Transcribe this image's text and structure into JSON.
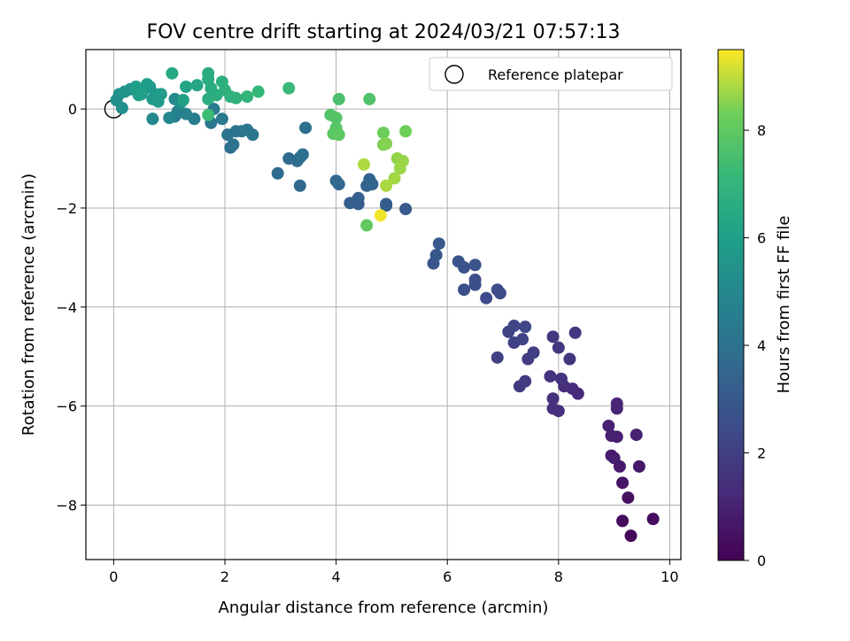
{
  "chart_data": {
    "type": "scatter",
    "title": "FOV centre drift starting at 2024/03/21 07:57:13",
    "xlabel": "Angular distance from reference (arcmin)",
    "ylabel": "Rotation from reference (arcmin)",
    "colorbar_label": "Hours from first FF file",
    "xlim": [
      -0.5,
      10.2
    ],
    "ylim": [
      -9.1,
      1.2
    ],
    "x_ticks": [
      "0",
      "2",
      "4",
      "6",
      "8",
      "10"
    ],
    "y_ticks": [
      "0",
      "−2",
      "−4",
      "−6",
      "−8"
    ],
    "colorbar_range": [
      0,
      9.5
    ],
    "colorbar_ticks": [
      "0",
      "2",
      "4",
      "6",
      "8"
    ],
    "colormap": "viridis",
    "grid": true,
    "legend": {
      "placement": "top-right",
      "entries": [
        "Reference platepar"
      ]
    },
    "reference_point": {
      "x": 0,
      "y": 0
    },
    "points": [
      [
        9.3,
        -8.62,
        0.2
      ],
      [
        9.15,
        -8.32,
        0.3
      ],
      [
        9.7,
        -8.28,
        0.35
      ],
      [
        9.25,
        -7.85,
        0.5
      ],
      [
        9.15,
        -7.55,
        0.6
      ],
      [
        9.45,
        -7.22,
        0.7
      ],
      [
        9.1,
        -7.22,
        0.75
      ],
      [
        8.95,
        -7.0,
        0.8
      ],
      [
        9.0,
        -7.05,
        0.85
      ],
      [
        9.05,
        -6.62,
        0.9
      ],
      [
        8.95,
        -6.6,
        0.95
      ],
      [
        9.4,
        -6.58,
        1.0
      ],
      [
        8.9,
        -6.4,
        1.05
      ],
      [
        9.05,
        -6.05,
        1.1
      ],
      [
        9.05,
        -5.95,
        1.15
      ],
      [
        8.35,
        -5.75,
        1.25
      ],
      [
        8.25,
        -5.65,
        1.3
      ],
      [
        8.1,
        -5.6,
        1.35
      ],
      [
        8.0,
        -6.1,
        1.4
      ],
      [
        7.9,
        -6.05,
        1.45
      ],
      [
        7.9,
        -5.85,
        1.5
      ],
      [
        8.05,
        -5.45,
        1.55
      ],
      [
        7.85,
        -5.4,
        1.6
      ],
      [
        8.2,
        -5.05,
        1.65
      ],
      [
        8.0,
        -4.82,
        1.7
      ],
      [
        7.9,
        -4.6,
        1.75
      ],
      [
        8.3,
        -4.52,
        1.8
      ],
      [
        7.3,
        -5.6,
        1.85
      ],
      [
        7.4,
        -5.5,
        1.9
      ],
      [
        7.45,
        -5.05,
        1.95
      ],
      [
        7.55,
        -4.92,
        2.0
      ],
      [
        6.9,
        -5.02,
        2.05
      ],
      [
        7.2,
        -4.72,
        2.1
      ],
      [
        7.35,
        -4.65,
        2.15
      ],
      [
        7.1,
        -4.5,
        2.2
      ],
      [
        7.2,
        -4.38,
        2.25
      ],
      [
        7.4,
        -4.4,
        2.3
      ],
      [
        6.7,
        -3.82,
        2.4
      ],
      [
        6.95,
        -3.72,
        2.45
      ],
      [
        6.9,
        -3.65,
        2.5
      ],
      [
        6.5,
        -3.55,
        2.55
      ],
      [
        6.5,
        -3.45,
        2.6
      ],
      [
        6.3,
        -3.65,
        2.65
      ],
      [
        6.3,
        -3.2,
        2.7
      ],
      [
        6.5,
        -3.15,
        2.75
      ],
      [
        6.2,
        -3.08,
        2.8
      ],
      [
        5.75,
        -3.12,
        2.85
      ],
      [
        5.8,
        -2.95,
        2.9
      ],
      [
        5.85,
        -2.72,
        2.95
      ],
      [
        5.25,
        -2.02,
        3.0
      ],
      [
        4.9,
        -1.95,
        3.05
      ],
      [
        4.9,
        -1.92,
        3.1
      ],
      [
        4.4,
        -1.92,
        3.15
      ],
      [
        4.25,
        -1.9,
        3.2
      ],
      [
        4.4,
        -1.8,
        3.25
      ],
      [
        4.55,
        -1.55,
        3.3
      ],
      [
        4.6,
        -1.48,
        3.35
      ],
      [
        4.65,
        -1.52,
        3.4
      ],
      [
        4.6,
        -1.42,
        3.45
      ],
      [
        4.05,
        -1.52,
        3.5
      ],
      [
        4.0,
        -1.45,
        3.55
      ],
      [
        3.35,
        -1.55,
        3.6
      ],
      [
        2.95,
        -1.3,
        3.65
      ],
      [
        3.15,
        -1.0,
        3.7
      ],
      [
        3.35,
        -0.98,
        3.75
      ],
      [
        3.3,
        -1.05,
        3.8
      ],
      [
        3.4,
        -0.92,
        3.85
      ],
      [
        3.45,
        -0.38,
        3.9
      ],
      [
        2.1,
        -0.78,
        3.95
      ],
      [
        2.15,
        -0.72,
        4.0
      ],
      [
        2.05,
        -0.52,
        4.05
      ],
      [
        2.2,
        -0.45,
        4.1
      ],
      [
        2.3,
        -0.45,
        4.15
      ],
      [
        2.4,
        -0.42,
        4.2
      ],
      [
        2.5,
        -0.52,
        4.25
      ],
      [
        1.75,
        -0.28,
        4.3
      ],
      [
        1.95,
        -0.2,
        4.35
      ],
      [
        1.8,
        0.0,
        4.4
      ],
      [
        1.45,
        -0.2,
        4.5
      ],
      [
        1.1,
        -0.15,
        4.6
      ],
      [
        1.15,
        -0.05,
        4.7
      ],
      [
        1.3,
        -0.1,
        4.8
      ],
      [
        1.0,
        -0.18,
        4.9
      ],
      [
        0.7,
        -0.2,
        5.0
      ],
      [
        1.1,
        0.2,
        5.1
      ],
      [
        1.2,
        0.12,
        5.2
      ],
      [
        0.15,
        0.02,
        5.3
      ],
      [
        0.05,
        0.18,
        5.35
      ],
      [
        0.1,
        0.3,
        5.4
      ],
      [
        0.2,
        0.35,
        5.45
      ],
      [
        0.3,
        0.4,
        5.5
      ],
      [
        0.5,
        0.3,
        5.55
      ],
      [
        0.55,
        0.4,
        5.6
      ],
      [
        0.65,
        0.45,
        5.65
      ],
      [
        0.75,
        0.3,
        5.7
      ],
      [
        0.7,
        0.2,
        5.75
      ],
      [
        0.8,
        0.15,
        5.8
      ],
      [
        0.85,
        0.3,
        5.85
      ],
      [
        0.6,
        0.5,
        5.9
      ],
      [
        0.4,
        0.45,
        5.95
      ],
      [
        0.45,
        0.28,
        6.0
      ],
      [
        0.5,
        0.32,
        6.05
      ],
      [
        1.25,
        0.18,
        6.1
      ],
      [
        1.3,
        0.45,
        6.2
      ],
      [
        1.5,
        0.48,
        6.3
      ],
      [
        1.05,
        0.72,
        6.4
      ],
      [
        1.7,
        0.72,
        6.5
      ],
      [
        1.7,
        0.6,
        6.55
      ],
      [
        1.75,
        0.42,
        6.6
      ],
      [
        1.7,
        0.2,
        6.65
      ],
      [
        1.85,
        0.28,
        6.7
      ],
      [
        1.95,
        0.55,
        6.75
      ],
      [
        2.0,
        0.38,
        6.8
      ],
      [
        2.1,
        0.25,
        6.85
      ],
      [
        2.2,
        0.22,
        6.9
      ],
      [
        2.4,
        0.25,
        7.0
      ],
      [
        2.6,
        0.35,
        7.1
      ],
      [
        3.15,
        0.42,
        7.2
      ],
      [
        1.7,
        -0.12,
        7.3
      ],
      [
        4.05,
        0.2,
        7.6
      ],
      [
        4.6,
        0.2,
        7.7
      ],
      [
        3.9,
        -0.12,
        7.75
      ],
      [
        4.0,
        -0.18,
        7.8
      ],
      [
        4.0,
        -0.38,
        7.85
      ],
      [
        3.95,
        -0.5,
        7.9
      ],
      [
        4.05,
        -0.52,
        7.95
      ],
      [
        4.55,
        -2.35,
        8.05
      ],
      [
        4.85,
        -0.48,
        8.25
      ],
      [
        5.25,
        -0.45,
        8.3
      ],
      [
        4.85,
        -0.72,
        8.4
      ],
      [
        4.9,
        -0.7,
        8.5
      ],
      [
        5.1,
        -1.0,
        8.6
      ],
      [
        5.2,
        -1.05,
        8.65
      ],
      [
        5.15,
        -1.2,
        8.7
      ],
      [
        5.05,
        -1.4,
        8.75
      ],
      [
        4.9,
        -1.55,
        8.8
      ],
      [
        4.5,
        -1.12,
        8.85
      ],
      [
        4.8,
        -2.15,
        9.4
      ]
    ]
  }
}
